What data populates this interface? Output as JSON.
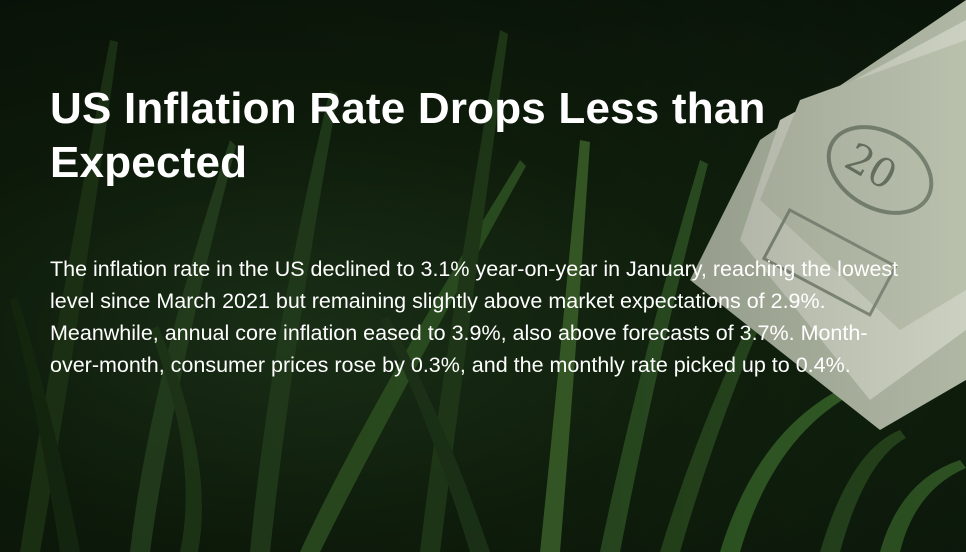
{
  "article": {
    "headline": "US Inflation Rate Drops Less than Expected",
    "body": "The inflation rate in the US declined to 3.1% year-on-year in January, reaching the lowest level since March 2021 but remaining slightly above market expectations of 2.9%. Meanwhile, annual core inflation eased to 3.9%, also above forecasts of 3.7%. Month-over-month, consumer prices rose by 0.3%, and the monthly rate picked up to 0.4%."
  },
  "background": {
    "scene": "grass-blades",
    "object": "dollar-bills",
    "colors": {
      "grass_dark": "#0a150a",
      "grass_mid": "#2f5a22",
      "grass_light": "#5e8a3a",
      "money": "#cfd6c4"
    }
  }
}
